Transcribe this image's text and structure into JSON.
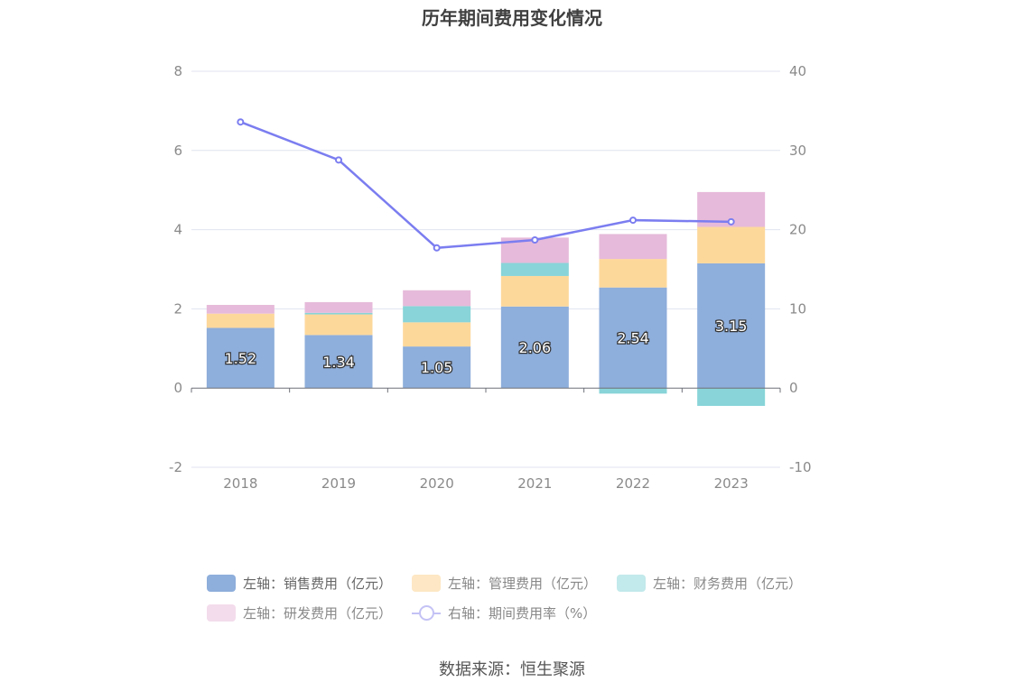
{
  "chart_data": {
    "type": "bar",
    "title": "历年期间费用变化情况",
    "categories": [
      "2018",
      "2019",
      "2020",
      "2021",
      "2022",
      "2023"
    ],
    "left_axis": {
      "ylim": [
        -2,
        8
      ],
      "ticks": [
        "-2",
        "0",
        "2",
        "4",
        "6",
        "8"
      ]
    },
    "right_axis": {
      "ylim": [
        -10,
        40
      ],
      "ticks": [
        "-10",
        "0",
        "10",
        "20",
        "30",
        "40"
      ]
    },
    "stacked": true,
    "series": [
      {
        "name": "左轴：销售费用（亿元）",
        "axis": "left",
        "color": "#8eaedb",
        "values": [
          1.52,
          1.34,
          1.05,
          2.06,
          2.54,
          3.15
        ],
        "labels": [
          "1.52",
          "1.34",
          "1.05",
          "2.06",
          "2.54",
          "3.15"
        ]
      },
      {
        "name": "左轴：管理费用（亿元）",
        "axis": "left",
        "color": "#fdd89b",
        "values": [
          0.36,
          0.52,
          0.61,
          0.77,
          0.72,
          0.92
        ]
      },
      {
        "name": "左轴：财务费用（亿元）",
        "axis": "left",
        "color": "#88d4d8",
        "values": [
          0.0,
          0.04,
          0.41,
          0.33,
          -0.14,
          -0.45
        ]
      },
      {
        "name": "左轴：研发费用（亿元）",
        "axis": "left",
        "color": "#e6bada",
        "values": [
          0.22,
          0.27,
          0.4,
          0.64,
          0.63,
          0.88
        ]
      },
      {
        "name": "右轴：期间费用率（%）",
        "axis": "right",
        "type": "line",
        "color": "#7b7df0",
        "values": [
          33.6,
          28.8,
          17.7,
          18.7,
          21.2,
          21.0
        ]
      }
    ],
    "legend_position": "bottom",
    "grid": true
  },
  "source": "数据来源：恒生聚源"
}
